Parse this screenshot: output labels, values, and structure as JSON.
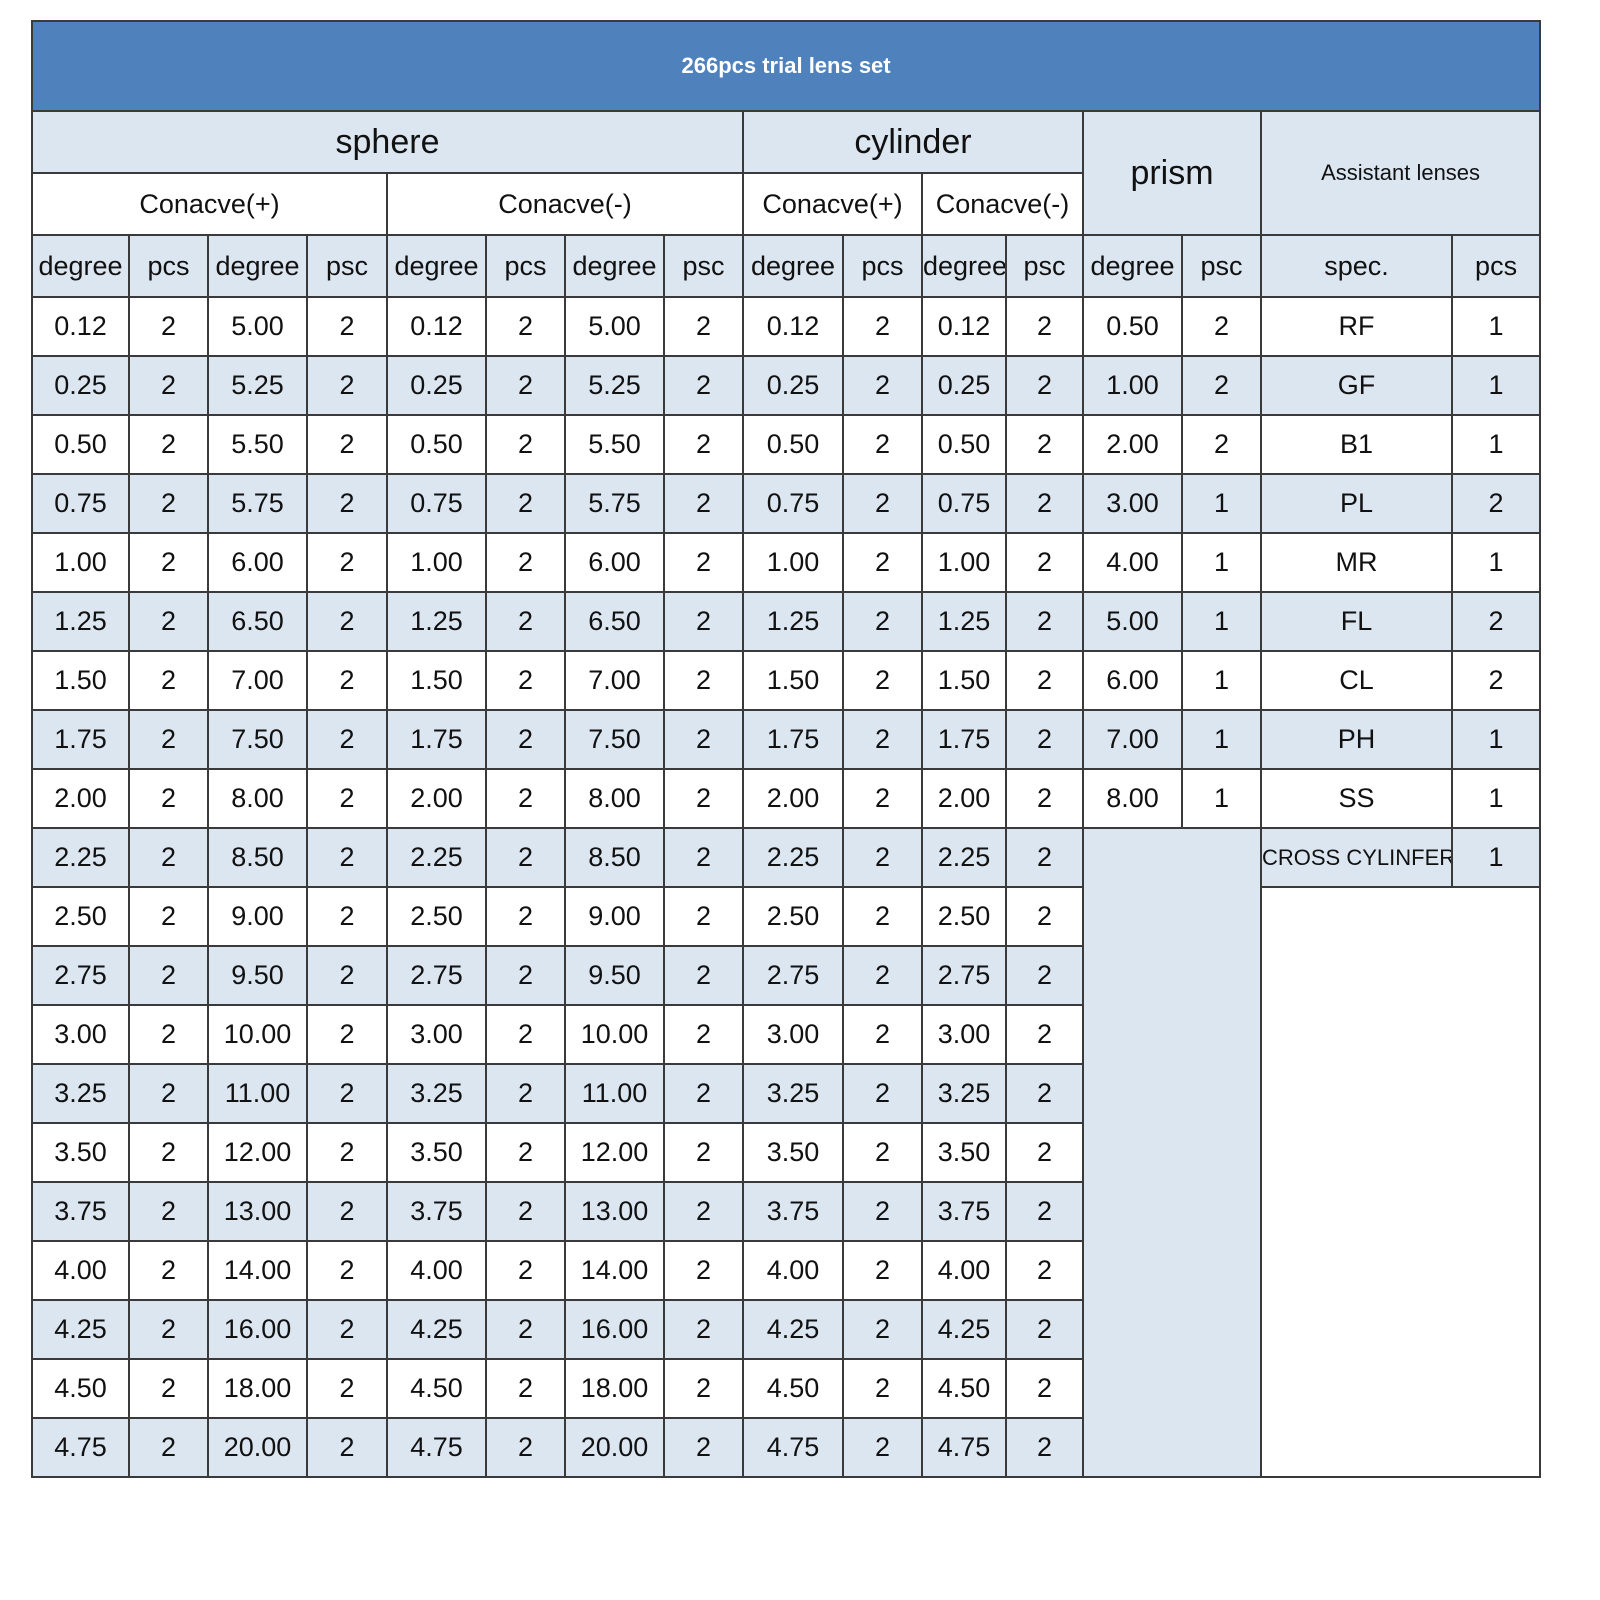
{
  "title": "266pcs trial lens set",
  "groups": [
    "sphere",
    "cylinder",
    "prism",
    "Assistant lenses"
  ],
  "subgroups": [
    "Conacve(+)",
    "Conacve(-)",
    "Conacve(+)",
    "Conacve(-)"
  ],
  "columns": [
    "degree",
    "pcs",
    "degree",
    "psc",
    "degree",
    "pcs",
    "degree",
    "psc",
    "degree",
    "pcs",
    "degree",
    "psc",
    "degree",
    "psc",
    "spec.",
    "pcs"
  ],
  "main_rows": [
    [
      "0.12",
      "2",
      "5.00",
      "2",
      "0.12",
      "2",
      "5.00",
      "2",
      "0.12",
      "2",
      "0.12",
      "2"
    ],
    [
      "0.25",
      "2",
      "5.25",
      "2",
      "0.25",
      "2",
      "5.25",
      "2",
      "0.25",
      "2",
      "0.25",
      "2"
    ],
    [
      "0.50",
      "2",
      "5.50",
      "2",
      "0.50",
      "2",
      "5.50",
      "2",
      "0.50",
      "2",
      "0.50",
      "2"
    ],
    [
      "0.75",
      "2",
      "5.75",
      "2",
      "0.75",
      "2",
      "5.75",
      "2",
      "0.75",
      "2",
      "0.75",
      "2"
    ],
    [
      "1.00",
      "2",
      "6.00",
      "2",
      "1.00",
      "2",
      "6.00",
      "2",
      "1.00",
      "2",
      "1.00",
      "2"
    ],
    [
      "1.25",
      "2",
      "6.50",
      "2",
      "1.25",
      "2",
      "6.50",
      "2",
      "1.25",
      "2",
      "1.25",
      "2"
    ],
    [
      "1.50",
      "2",
      "7.00",
      "2",
      "1.50",
      "2",
      "7.00",
      "2",
      "1.50",
      "2",
      "1.50",
      "2"
    ],
    [
      "1.75",
      "2",
      "7.50",
      "2",
      "1.75",
      "2",
      "7.50",
      "2",
      "1.75",
      "2",
      "1.75",
      "2"
    ],
    [
      "2.00",
      "2",
      "8.00",
      "2",
      "2.00",
      "2",
      "8.00",
      "2",
      "2.00",
      "2",
      "2.00",
      "2"
    ],
    [
      "2.25",
      "2",
      "8.50",
      "2",
      "2.25",
      "2",
      "8.50",
      "2",
      "2.25",
      "2",
      "2.25",
      "2"
    ],
    [
      "2.50",
      "2",
      "9.00",
      "2",
      "2.50",
      "2",
      "9.00",
      "2",
      "2.50",
      "2",
      "2.50",
      "2"
    ],
    [
      "2.75",
      "2",
      "9.50",
      "2",
      "2.75",
      "2",
      "9.50",
      "2",
      "2.75",
      "2",
      "2.75",
      "2"
    ],
    [
      "3.00",
      "2",
      "10.00",
      "2",
      "3.00",
      "2",
      "10.00",
      "2",
      "3.00",
      "2",
      "3.00",
      "2"
    ],
    [
      "3.25",
      "2",
      "11.00",
      "2",
      "3.25",
      "2",
      "11.00",
      "2",
      "3.25",
      "2",
      "3.25",
      "2"
    ],
    [
      "3.50",
      "2",
      "12.00",
      "2",
      "3.50",
      "2",
      "12.00",
      "2",
      "3.50",
      "2",
      "3.50",
      "2"
    ],
    [
      "3.75",
      "2",
      "13.00",
      "2",
      "3.75",
      "2",
      "13.00",
      "2",
      "3.75",
      "2",
      "3.75",
      "2"
    ],
    [
      "4.00",
      "2",
      "14.00",
      "2",
      "4.00",
      "2",
      "14.00",
      "2",
      "4.00",
      "2",
      "4.00",
      "2"
    ],
    [
      "4.25",
      "2",
      "16.00",
      "2",
      "4.25",
      "2",
      "16.00",
      "2",
      "4.25",
      "2",
      "4.25",
      "2"
    ],
    [
      "4.50",
      "2",
      "18.00",
      "2",
      "4.50",
      "2",
      "18.00",
      "2",
      "4.50",
      "2",
      "4.50",
      "2"
    ],
    [
      "4.75",
      "2",
      "20.00",
      "2",
      "4.75",
      "2",
      "20.00",
      "2",
      "4.75",
      "2",
      "4.75",
      "2"
    ]
  ],
  "prism_rows": [
    [
      "0.50",
      "2"
    ],
    [
      "1.00",
      "2"
    ],
    [
      "2.00",
      "2"
    ],
    [
      "3.00",
      "1"
    ],
    [
      "4.00",
      "1"
    ],
    [
      "5.00",
      "1"
    ],
    [
      "6.00",
      "1"
    ],
    [
      "7.00",
      "1"
    ],
    [
      "8.00",
      "1"
    ]
  ],
  "assistant_rows": [
    [
      "RF",
      "1"
    ],
    [
      "GF",
      "1"
    ],
    [
      "B1",
      "1"
    ],
    [
      "PL",
      "2"
    ],
    [
      "MR",
      "1"
    ],
    [
      "FL",
      "2"
    ],
    [
      "CL",
      "2"
    ],
    [
      "PH",
      "1"
    ],
    [
      "SS",
      "1"
    ],
    [
      "CROSS CYLINFER",
      "1"
    ]
  ]
}
